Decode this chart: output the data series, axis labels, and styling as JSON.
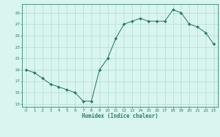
{
  "x": [
    0,
    1,
    2,
    3,
    4,
    5,
    6,
    7,
    8,
    9,
    10,
    11,
    12,
    13,
    14,
    15,
    16,
    17,
    18,
    19,
    20,
    21,
    22,
    23
  ],
  "y": [
    19,
    18.5,
    17.5,
    16.5,
    16,
    15.5,
    15,
    13.5,
    13.5,
    19,
    21,
    24.5,
    27,
    27.5,
    28,
    27.5,
    27.5,
    27.5,
    29.5,
    29,
    27,
    26.5,
    25.5,
    23.5
  ],
  "line_color": "#2d7a6a",
  "marker_color": "#2d7a6a",
  "bg_color": "#d8f5f0",
  "grid_color": "#b8ddd8",
  "xlabel": "Humidex (Indice chaleur)",
  "xlabel_color": "#2d7a6a",
  "tick_color": "#2d7a6a",
  "yticks": [
    13,
    15,
    17,
    19,
    21,
    23,
    25,
    27,
    29
  ],
  "xticks": [
    0,
    1,
    2,
    3,
    4,
    5,
    6,
    7,
    8,
    9,
    10,
    11,
    12,
    13,
    14,
    15,
    16,
    17,
    18,
    19,
    20,
    21,
    22,
    23
  ],
  "ylim": [
    12.5,
    30.5
  ],
  "xlim": [
    -0.5,
    23.5
  ]
}
